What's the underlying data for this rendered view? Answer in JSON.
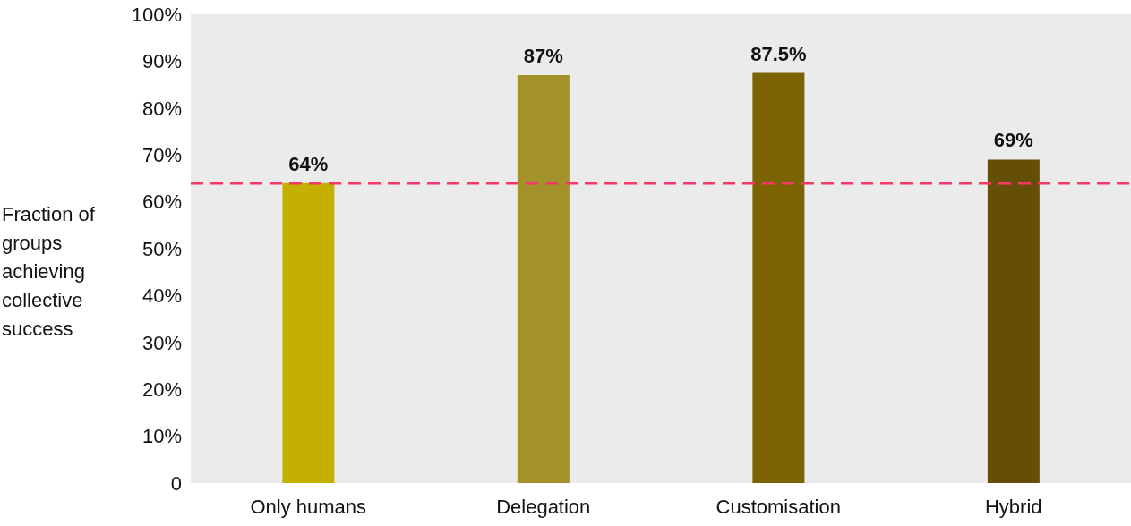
{
  "chart_data": {
    "type": "bar",
    "ylabel": "Fraction of groups achieving collective success",
    "categories": [
      "Only humans",
      "Delegation",
      "Customisation",
      "Hybrid"
    ],
    "values": [
      64,
      87,
      87.5,
      69
    ],
    "colors": [
      "#c4b000",
      "#a39129",
      "#7a6300",
      "#654f08"
    ],
    "value_labels": [
      "64%",
      "87%",
      "87.5%",
      "69%"
    ],
    "ylim": [
      0,
      100
    ],
    "yticks": [
      0,
      {
        "value": 10,
        "label": "10%"
      },
      {
        "value": 20,
        "label": "20%"
      },
      {
        "value": 30,
        "label": "30%"
      },
      {
        "value": 40,
        "label": "40%"
      },
      {
        "value": 50,
        "label": "50%"
      },
      {
        "value": 60,
        "label": "60%"
      },
      {
        "value": 70,
        "label": "70%"
      },
      {
        "value": 80,
        "label": "80%"
      },
      {
        "value": 90,
        "label": "90%"
      },
      {
        "value": 100,
        "label": "100%"
      }
    ],
    "ref_lines": [
      {
        "axis": "y",
        "value": 64,
        "color": "#f7396a",
        "line_style": "dashed"
      }
    ]
  }
}
